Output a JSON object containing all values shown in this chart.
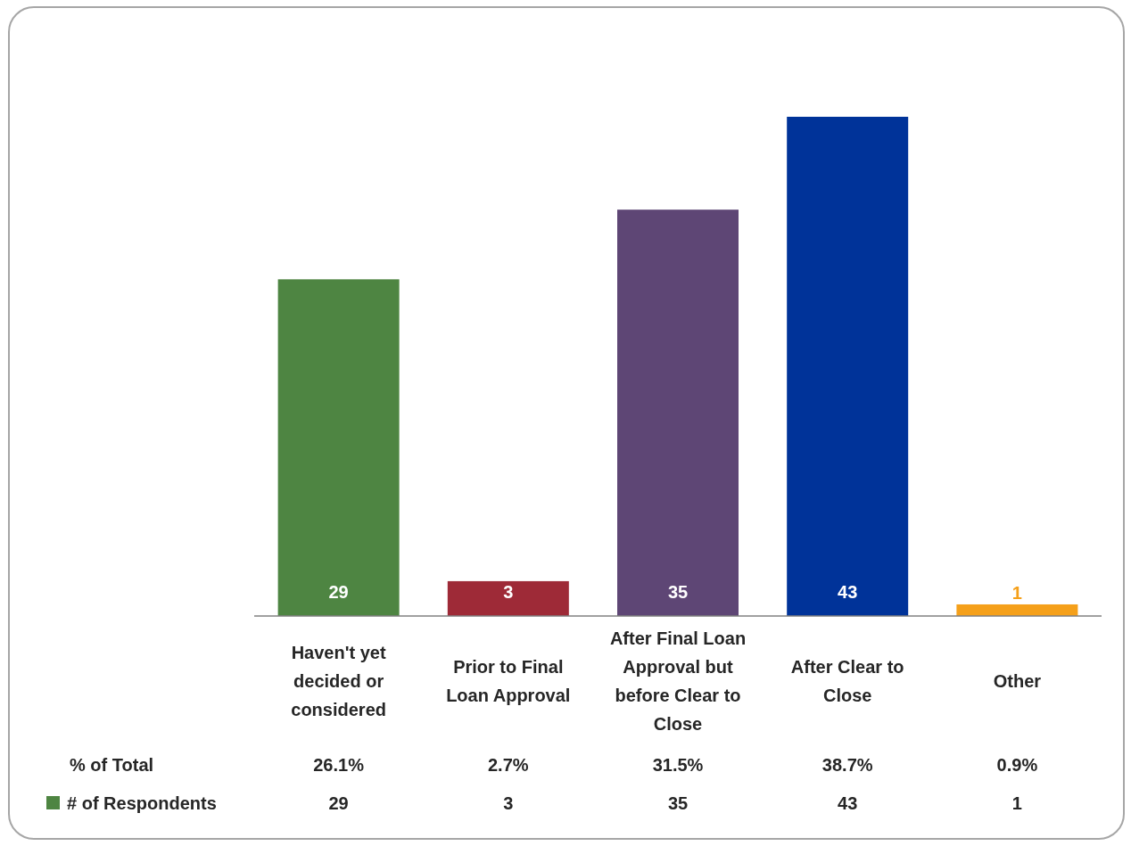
{
  "chart_data": {
    "type": "bar",
    "categories": [
      "Haven't yet decided or considered",
      "Prior to Final Loan Approval",
      "After Final Loan Approval but before Clear to Close",
      "After Clear to Close",
      "Other"
    ],
    "series": [
      {
        "name": "# of Respondents",
        "color": "#4e8542",
        "colors": [
          "#4e8542",
          "#9e2a37",
          "#5e4675",
          "#003399",
          "#f5a01a"
        ],
        "values": [
          29,
          3,
          35,
          43,
          1
        ],
        "value_labels": [
          "29",
          "3",
          "35",
          "43",
          "1"
        ]
      }
    ],
    "legend": "bottom left",
    "annotations": [
      "% of Total",
      "26.1%",
      "2.7%",
      "31.5%",
      "38.7%",
      "0.9%",
      "29",
      "3",
      "35",
      "43",
      "1"
    ]
  }
}
